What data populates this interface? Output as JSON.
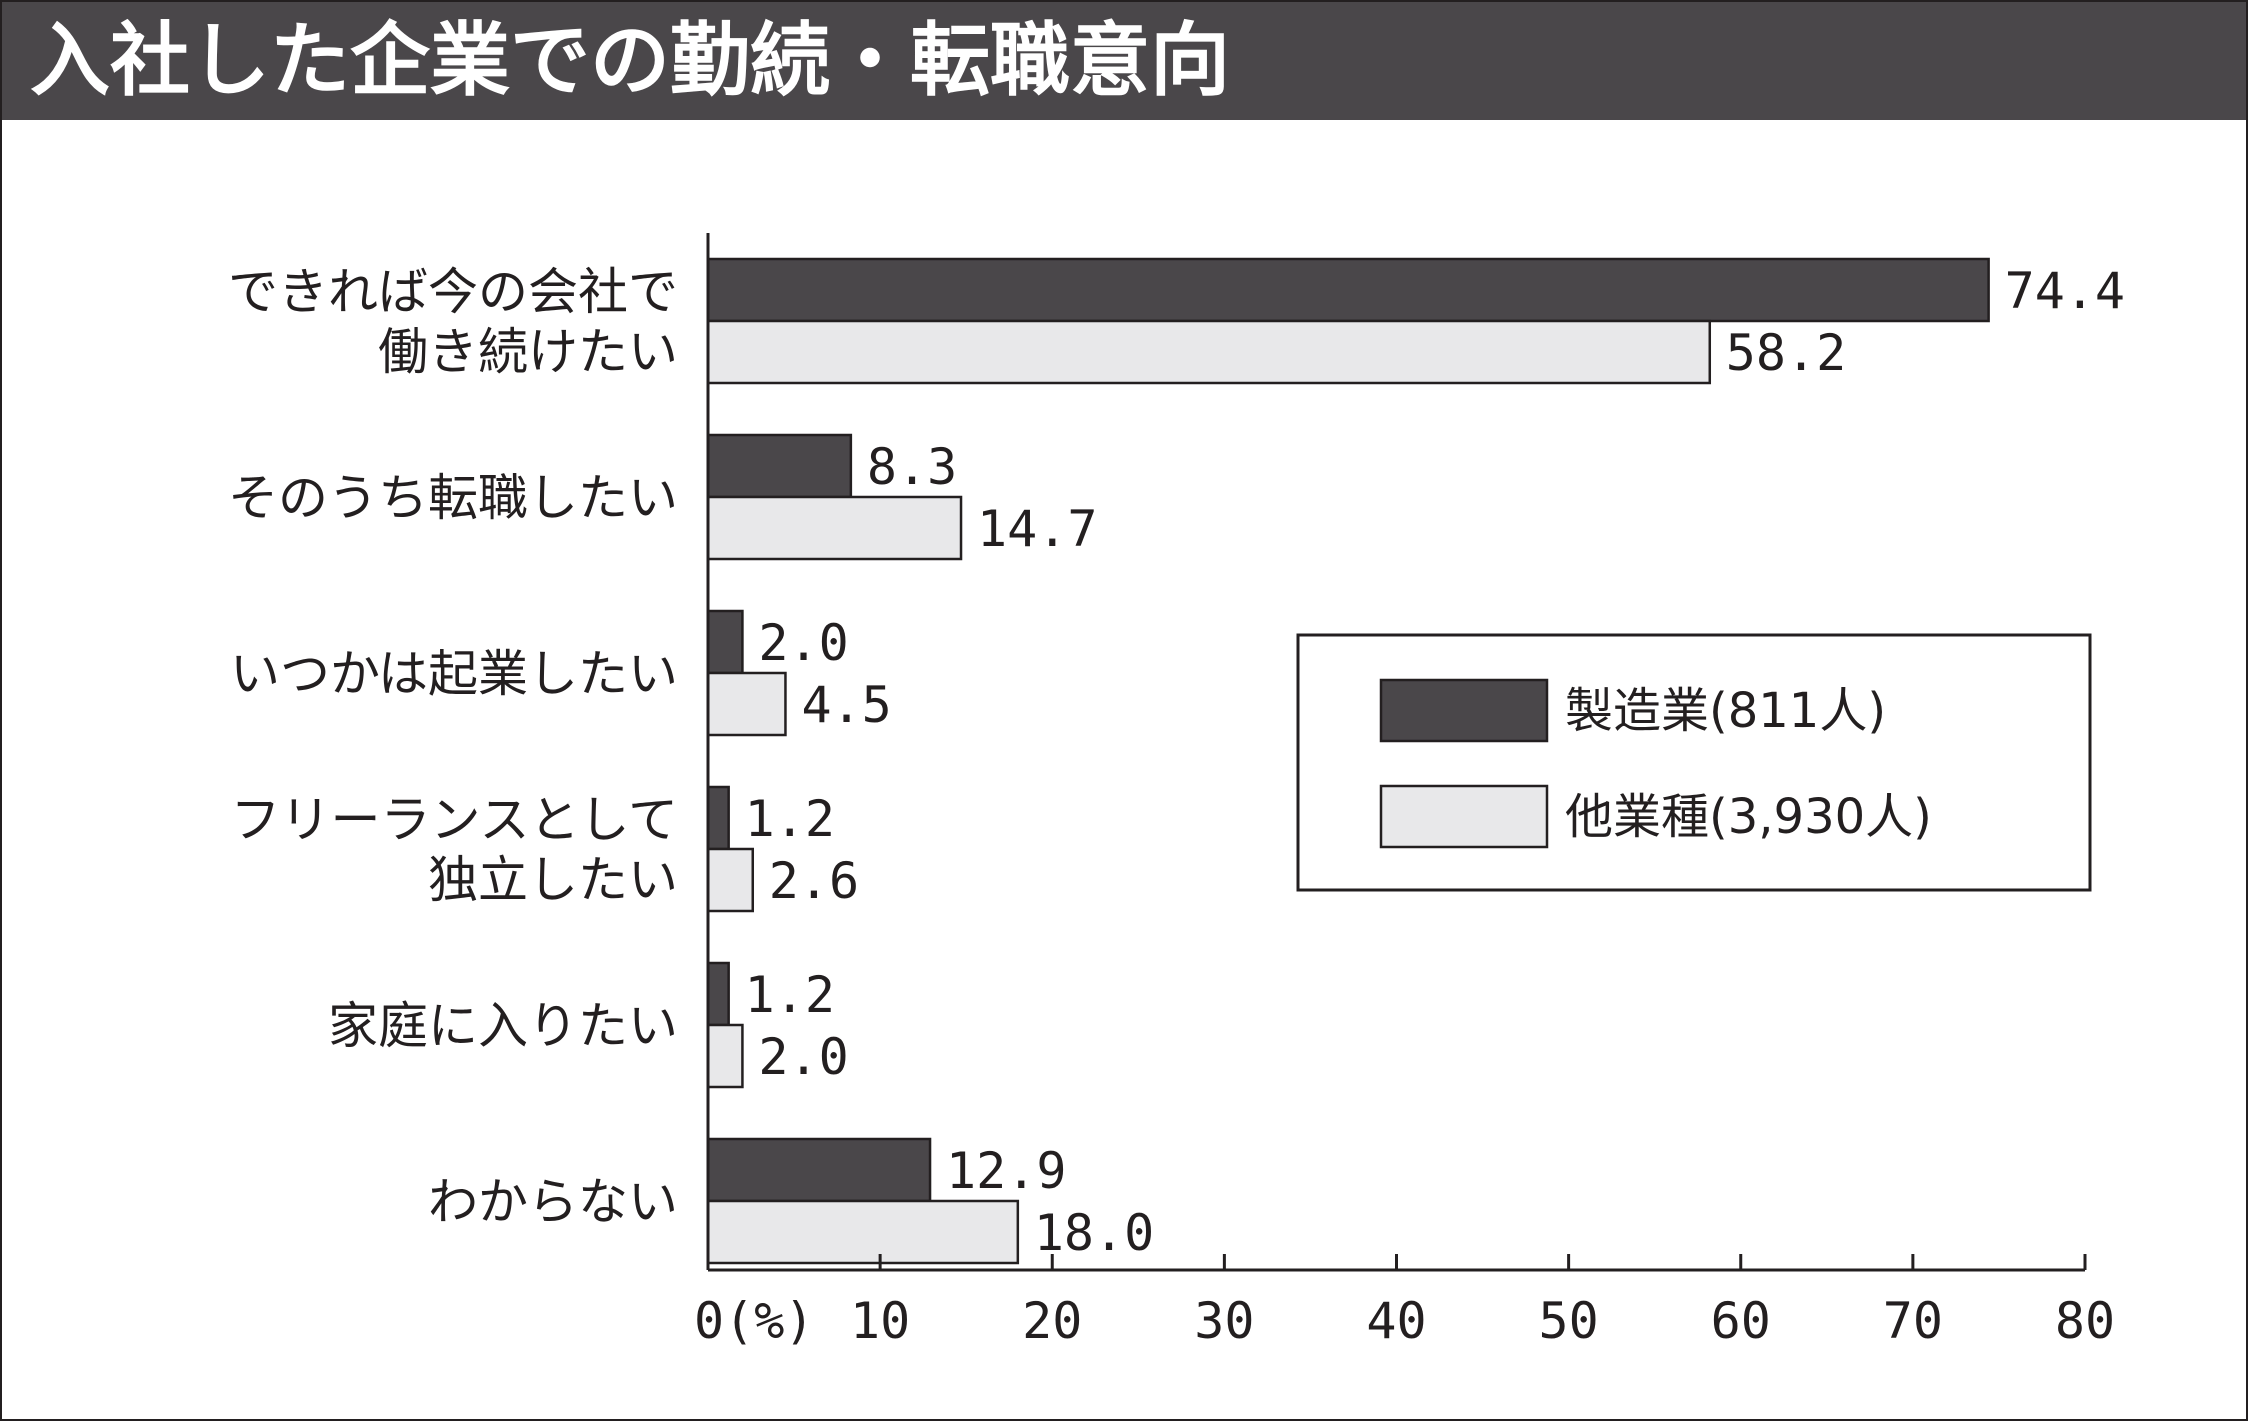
{
  "header": {
    "title": "入社した企業での勤続・転職意向"
  },
  "chart_data": {
    "type": "bar",
    "orientation": "horizontal",
    "title": "入社した企業での勤続・転職意向",
    "categories": [
      [
        "できれば今の会社で",
        "働き続けたい"
      ],
      [
        "そのうち転職したい"
      ],
      [
        "いつかは起業したい"
      ],
      [
        "フリーランスとして",
        "独立したい"
      ],
      [
        "家庭に入りたい"
      ],
      [
        "わからない"
      ]
    ],
    "series": [
      {
        "name": "製造業(811人)",
        "color": "#4a474a",
        "values": [
          74.4,
          8.3,
          2.0,
          1.2,
          1.2,
          12.9
        ]
      },
      {
        "name": "他業種(3,930人)",
        "color": "#e8e8ea",
        "values": [
          58.2,
          14.7,
          4.5,
          2.6,
          2.0,
          18.0
        ]
      }
    ],
    "value_labels": [
      [
        "74.4",
        "8.3",
        "2.0",
        "1.2",
        "1.2",
        "12.9"
      ],
      [
        "58.2",
        "14.7",
        "4.5",
        "2.6",
        "2.0",
        "18.0"
      ]
    ],
    "xlim": [
      0,
      80
    ],
    "x_ticks": [
      0,
      10,
      20,
      30,
      40,
      50,
      60,
      70,
      80
    ],
    "x_tick_labels": [
      "0(%)",
      "10",
      "20",
      "30",
      "40",
      "50",
      "60",
      "70",
      "80"
    ],
    "legend_position": "right-middle",
    "grid": false
  }
}
